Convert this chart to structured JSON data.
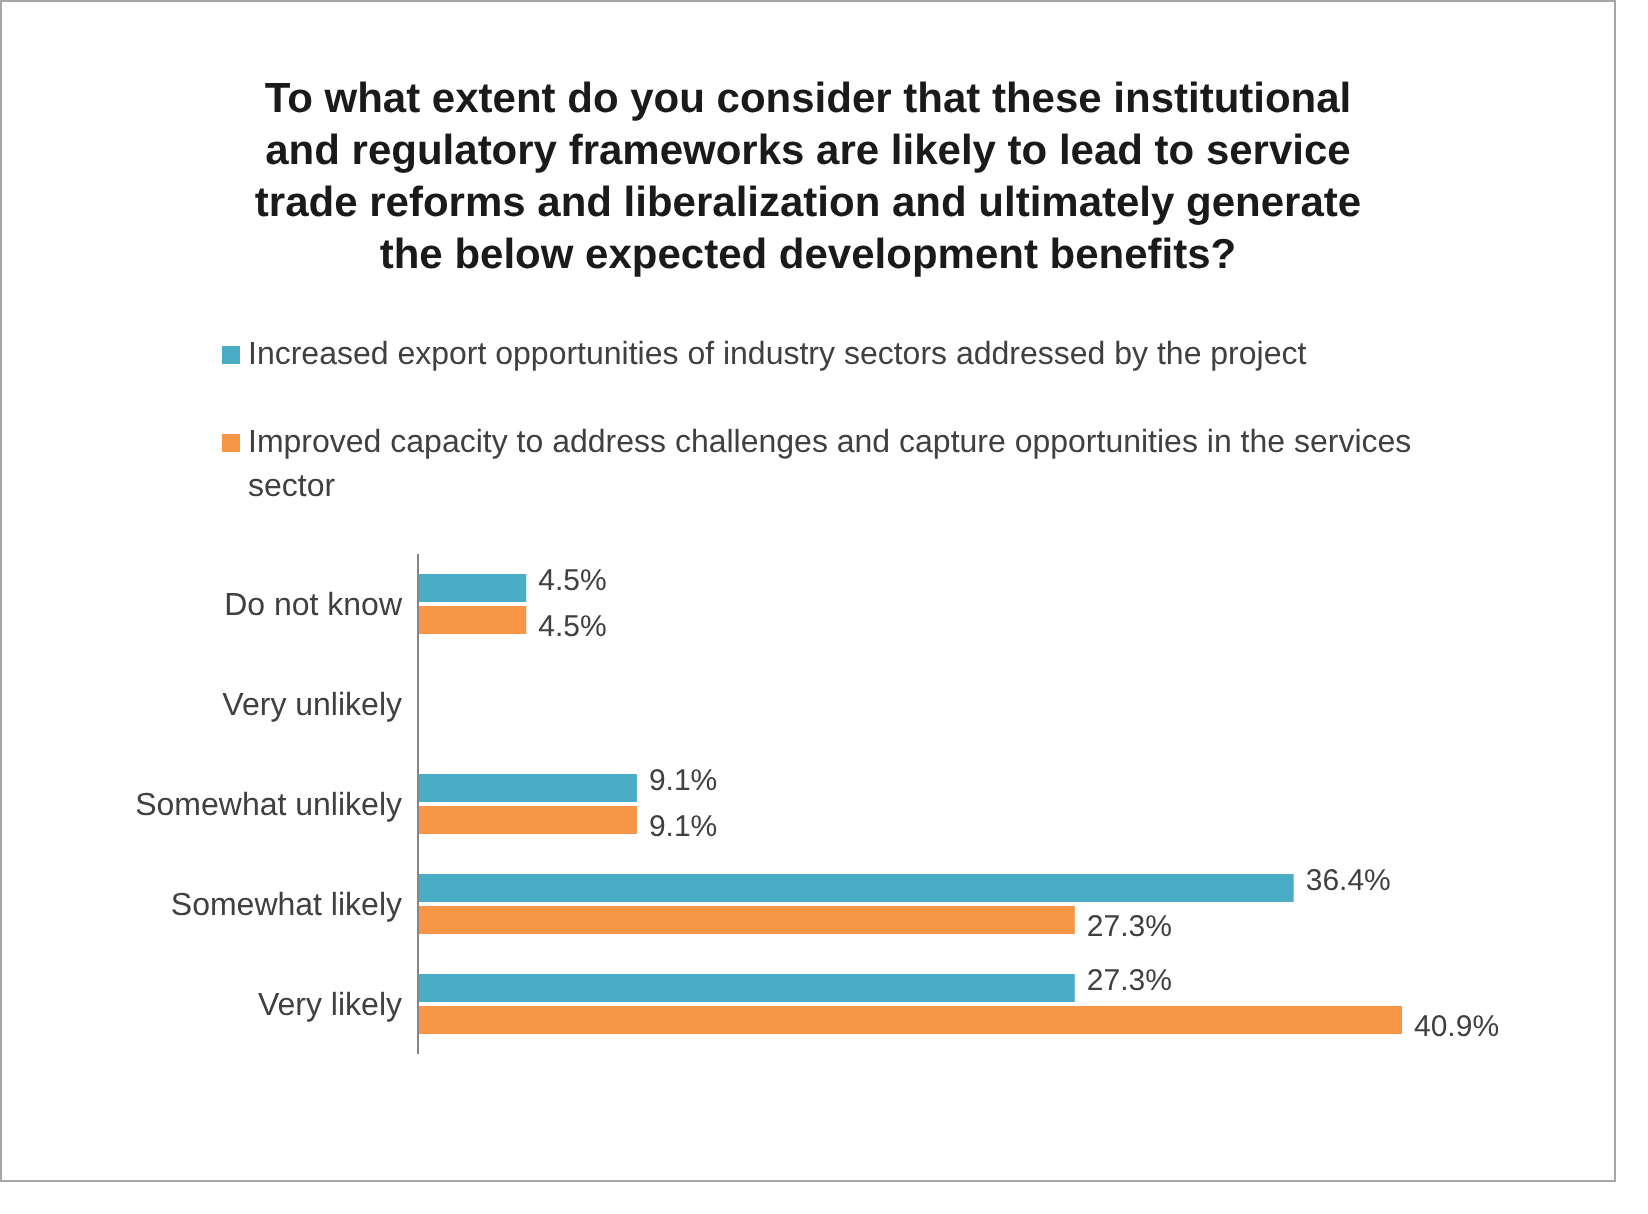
{
  "chart_data": {
    "type": "bar",
    "orientation": "horizontal",
    "title": "To what extent do you consider that these institutional and regulatory frameworks are likely to lead to service trade reforms and liberalization and ultimately generate the below expected development benefits?",
    "categories": [
      "Do not know",
      "Very unlikely",
      "Somewhat unlikely",
      "Somewhat likely",
      "Very likely"
    ],
    "series": [
      {
        "name": "Increased export opportunities of industry sectors addressed by the project",
        "color": "#4bacc6",
        "values": [
          4.5,
          null,
          9.1,
          36.4,
          27.3
        ],
        "value_labels": [
          "4.5%",
          null,
          "9.1%",
          "36.4%",
          "27.3%"
        ]
      },
      {
        "name": "Improved capacity to address challenges and capture opportunities in the services sector",
        "color": "#f79646",
        "values": [
          4.5,
          null,
          9.1,
          27.3,
          40.9
        ],
        "value_labels": [
          "4.5%",
          null,
          "9.1%",
          "27.3%",
          "40.9%"
        ]
      }
    ],
    "legend": "top",
    "grid": false
  }
}
